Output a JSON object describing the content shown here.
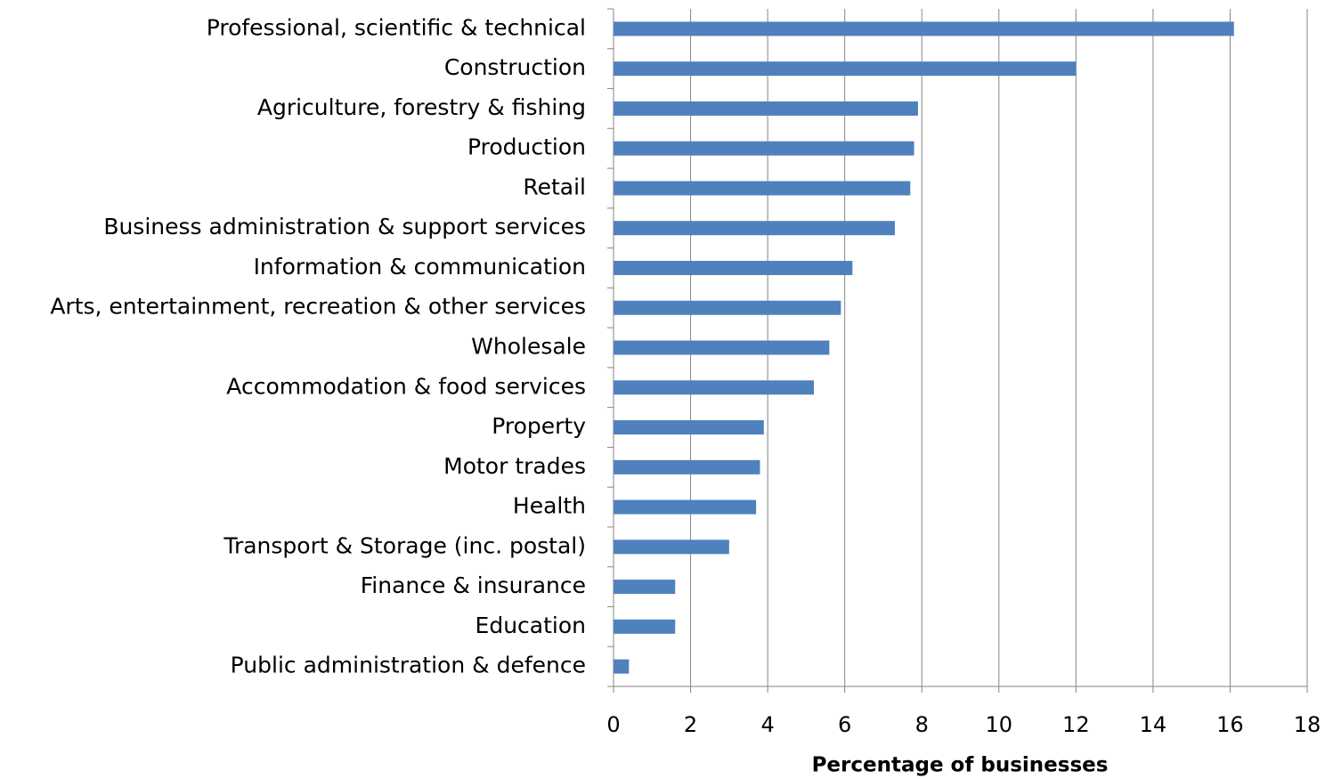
{
  "chart_data": {
    "type": "barh",
    "x_label": "Percentage of businesses",
    "categories": [
      "Professional, scientific & technical",
      "Construction",
      "Agriculture, forestry & fishing",
      "Production",
      "Retail",
      "Business administration & support services",
      "Information & communication",
      "Arts, entertainment, recreation & other services",
      "Wholesale",
      "Accommodation & food services",
      "Property",
      "Motor trades",
      "Health",
      "Transport & Storage (inc. postal)",
      "Finance & insurance",
      "Education",
      "Public administration & defence"
    ],
    "values": [
      16.1,
      12.0,
      7.9,
      7.8,
      7.7,
      7.3,
      6.2,
      5.9,
      5.6,
      5.2,
      3.9,
      3.8,
      3.7,
      3.0,
      1.6,
      1.6,
      0.4
    ],
    "color": "#4f81bd",
    "xlim": [
      0,
      18
    ],
    "xticks": [
      0,
      2,
      4,
      6,
      8,
      10,
      12,
      14,
      16,
      18
    ],
    "grid": true
  }
}
